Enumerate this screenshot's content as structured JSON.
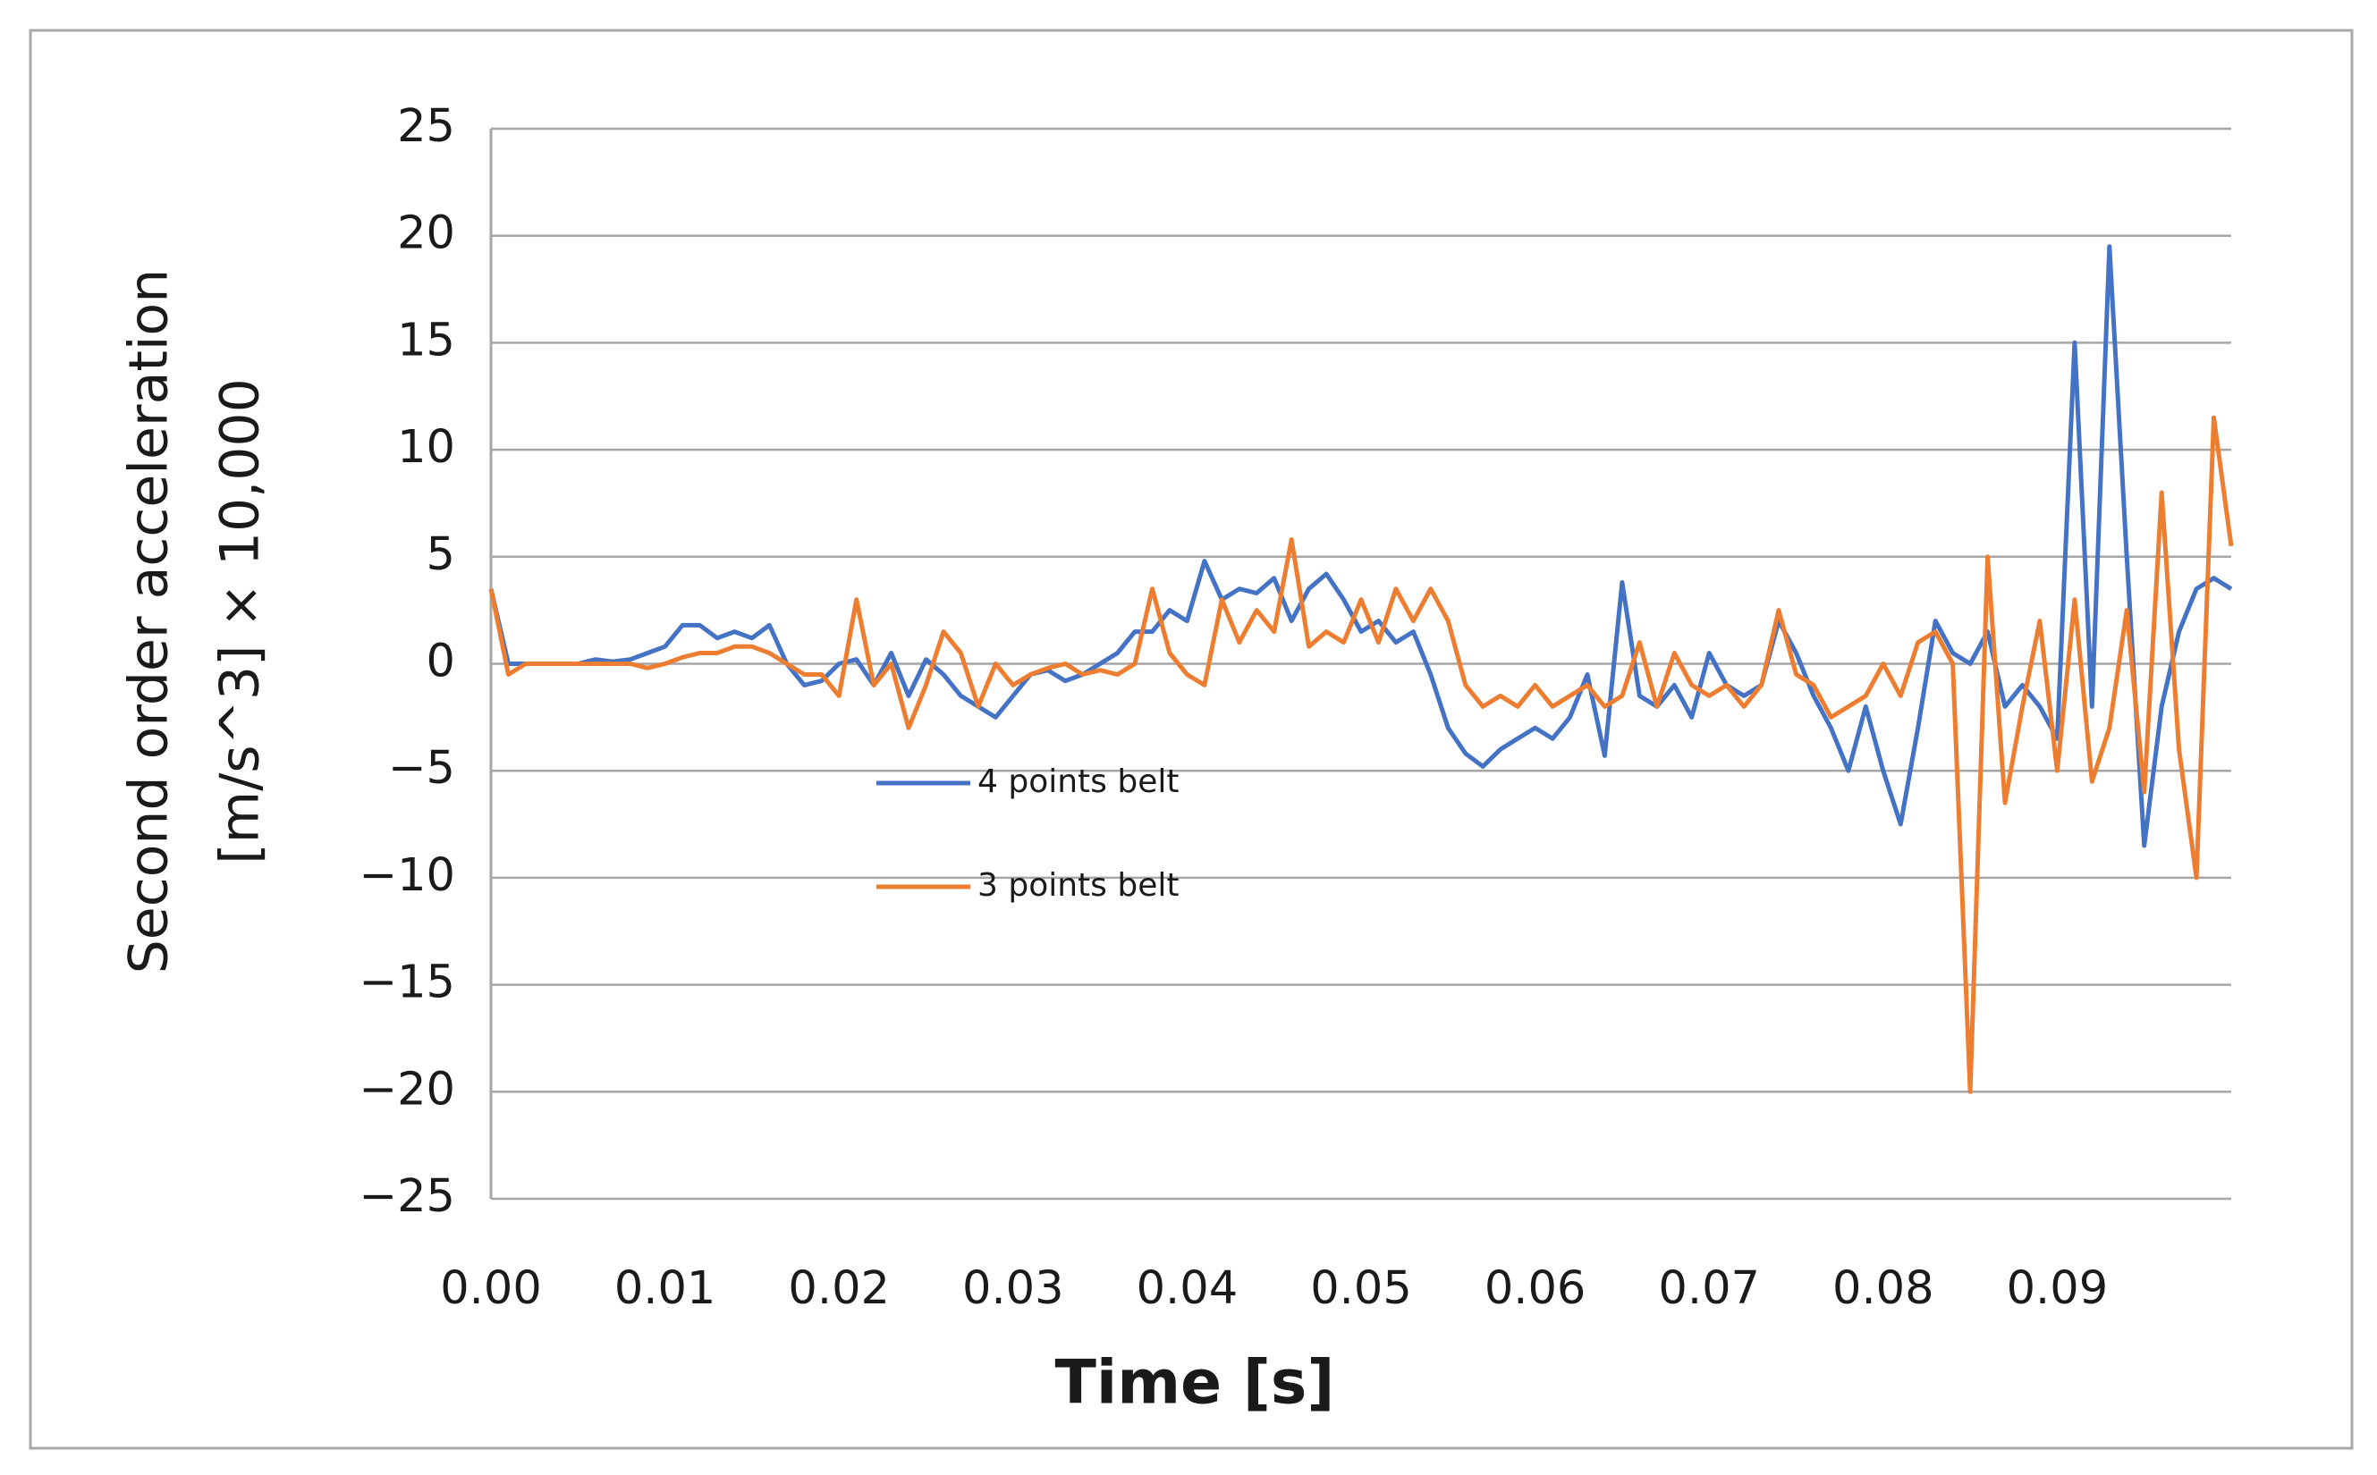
{
  "chart_data": {
    "type": "line",
    "y_label_lines": [
      "Second order acceleration",
      "[m/s^3]  × 10,000"
    ],
    "x_label": "Time [s]",
    "x": [
      0,
      0.001,
      0.002,
      0.003,
      0.004,
      0.005,
      0.006,
      0.007,
      0.008,
      0.009,
      0.01,
      0.011,
      0.012,
      0.013,
      0.014,
      0.015,
      0.016,
      0.017,
      0.018,
      0.019,
      0.02,
      0.021,
      0.022,
      0.023,
      0.024,
      0.025,
      0.026,
      0.027,
      0.028,
      0.029,
      0.03,
      0.031,
      0.032,
      0.033,
      0.034,
      0.035,
      0.036,
      0.037,
      0.038,
      0.039,
      0.04,
      0.041,
      0.042,
      0.043,
      0.044,
      0.045,
      0.046,
      0.047,
      0.048,
      0.049,
      0.05,
      0.051,
      0.052,
      0.053,
      0.054,
      0.055,
      0.056,
      0.057,
      0.058,
      0.059,
      0.06,
      0.061,
      0.062,
      0.063,
      0.064,
      0.065,
      0.066,
      0.067,
      0.068,
      0.069,
      0.07,
      0.071,
      0.072,
      0.073,
      0.074,
      0.075,
      0.076,
      0.077,
      0.078,
      0.079,
      0.08,
      0.081,
      0.082,
      0.083,
      0.084,
      0.085,
      0.086,
      0.087,
      0.088,
      0.089,
      0.09,
      0.091,
      0.092,
      0.093,
      0.094,
      0.095,
      0.096,
      0.097,
      0.098,
      0.099,
      0.1
    ],
    "series": [
      {
        "name": "4 points belt",
        "color": "#4472c4",
        "values": [
          3.5,
          0,
          0,
          0,
          0,
          0,
          0.2,
          0.1,
          0.2,
          0.5,
          0.8,
          1.8,
          1.8,
          1.2,
          1.5,
          1.2,
          1.8,
          0,
          -1,
          -0.8,
          0,
          0.2,
          -1,
          0.5,
          -1.5,
          0.2,
          -0.5,
          -1.5,
          -2,
          -2.5,
          -1.5,
          -0.5,
          -0.3,
          -0.8,
          -0.5,
          0,
          0.5,
          1.5,
          1.5,
          2.5,
          2,
          4.8,
          3,
          3.5,
          3.3,
          4,
          2,
          3.5,
          4.2,
          3,
          1.5,
          2,
          1,
          1.5,
          -0.5,
          -3,
          -4.2,
          -4.8,
          -4,
          -3.5,
          -3,
          -3.5,
          -2.5,
          -0.5,
          -4.3,
          3.8,
          -1.5,
          -2,
          -1,
          -2.5,
          0.5,
          -1,
          -1.5,
          -1,
          2,
          0.5,
          -1.5,
          -3,
          -5,
          -2,
          -5,
          -7.5,
          -3,
          2,
          0.5,
          0,
          1.5,
          -2,
          -1,
          -2,
          -3.5,
          15,
          -2,
          19.5,
          5,
          -8.5,
          -2,
          1.5,
          3.5,
          4,
          3.5
        ]
      },
      {
        "name": "3 points belt",
        "color": "#ed7d31",
        "values": [
          3.5,
          -0.5,
          0,
          0,
          0,
          0,
          0,
          0,
          0,
          -0.2,
          0,
          0.3,
          0.5,
          0.5,
          0.8,
          0.8,
          0.5,
          0,
          -0.5,
          -0.5,
          -1.5,
          3,
          -1,
          0,
          -3,
          -1,
          1.5,
          0.5,
          -2,
          0,
          -1,
          -0.5,
          -0.2,
          0,
          -0.5,
          -0.3,
          -0.5,
          0,
          3.5,
          0.5,
          -0.5,
          -1,
          3,
          1,
          2.5,
          1.5,
          5.8,
          0.8,
          1.5,
          1,
          3,
          1,
          3.5,
          2,
          3.5,
          2,
          -1,
          -2,
          -1.5,
          -2,
          -1,
          -2,
          -1.5,
          -1,
          -2,
          -1.5,
          1,
          -2,
          0.5,
          -1,
          -1.5,
          -1,
          -2,
          -1,
          2.5,
          -0.5,
          -1,
          -2.5,
          -2,
          -1.5,
          0,
          -1.5,
          1,
          1.5,
          0,
          -20,
          5,
          -6.5,
          -2,
          2,
          -5,
          3,
          -5.5,
          -3,
          2.5,
          -6,
          8,
          -4,
          -10,
          11.5,
          5.5
        ]
      }
    ],
    "xlim": [
      0,
      0.1
    ],
    "xticks": [
      {
        "value": 0,
        "label": "0.00"
      },
      0.01,
      0.02,
      0.03,
      0.04,
      0.05,
      0.06,
      0.07,
      0.08,
      0.09
    ],
    "ylim": [
      -25,
      25
    ],
    "yticks": [
      {
        "value": -25,
        "label": "−25"
      },
      {
        "value": -20,
        "label": "−20"
      },
      {
        "value": -15,
        "label": "−15"
      },
      {
        "value": -10,
        "label": "−10"
      },
      {
        "value": -5,
        "label": "−5"
      },
      0,
      5,
      10,
      15,
      20,
      25
    ],
    "grid": true
  }
}
